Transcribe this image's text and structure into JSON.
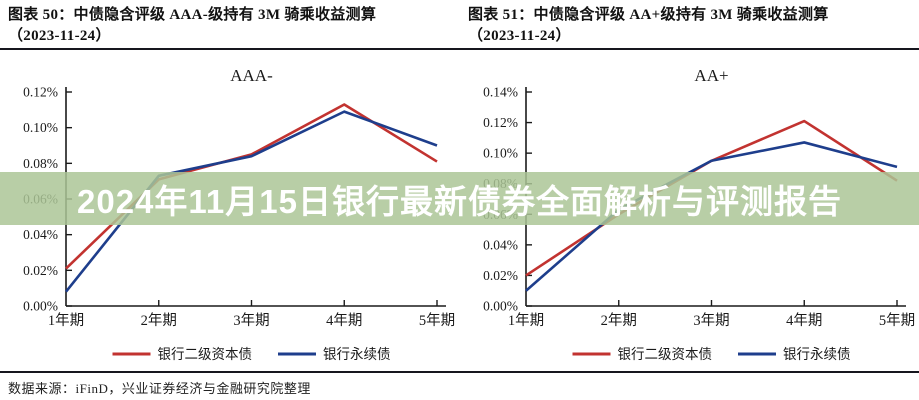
{
  "figures": [
    {
      "caption_line1": "图表 50：中债隐含评级 AAA-级持有 3M 骑乘收益测算",
      "caption_line2": "（2023-11-24）"
    },
    {
      "caption_line1": "图表 51：中债隐含评级 AA+级持有 3M 骑乘收益测算",
      "caption_line2": "（2023-11-24）"
    }
  ],
  "banner": {
    "text": "2024年11月15日银行最新债券全面解析与评测报告",
    "bg_color": "rgba(171,197,150,0.85)",
    "text_color": "#ffffff"
  },
  "source": {
    "text": "数据来源：iFinD，兴业证券经济与金融研究院整理"
  },
  "colors": {
    "tier2_bond_line": "#c23330",
    "perpetual_bond_line": "#1e3e8c",
    "axis": "#1a1a1a",
    "divider": "#16161e"
  },
  "chart_data": [
    {
      "type": "line",
      "title": "AAA-",
      "categories": [
        "1年期",
        "2年期",
        "3年期",
        "4年期",
        "5年期"
      ],
      "series": [
        {
          "name": "银行二级资本债",
          "color": "#c23330",
          "values": [
            0.021,
            0.071,
            0.085,
            0.113,
            0.081
          ]
        },
        {
          "name": "银行永续债",
          "color": "#1e3e8c",
          "values": [
            0.008,
            0.073,
            0.084,
            0.109,
            0.09
          ]
        }
      ],
      "xlabel": "",
      "ylabel": "",
      "ylim": [
        0,
        0.12
      ],
      "ytick_step": 0.02,
      "ytick_format": "0.00%",
      "grid": false,
      "legend_position": "bottom"
    },
    {
      "type": "line",
      "title": "AA+",
      "categories": [
        "1年期",
        "2年期",
        "3年期",
        "4年期",
        "5年期"
      ],
      "series": [
        {
          "name": "银行二级资本债",
          "color": "#c23330",
          "values": [
            0.02,
            0.06,
            0.095,
            0.121,
            0.082
          ]
        },
        {
          "name": "银行永续债",
          "color": "#1e3e8c",
          "values": [
            0.01,
            0.063,
            0.095,
            0.107,
            0.091
          ]
        }
      ],
      "xlabel": "",
      "ylabel": "",
      "ylim": [
        0,
        0.14
      ],
      "ytick_step": 0.02,
      "ytick_format": "0.00%",
      "grid": false,
      "legend_position": "bottom"
    }
  ]
}
